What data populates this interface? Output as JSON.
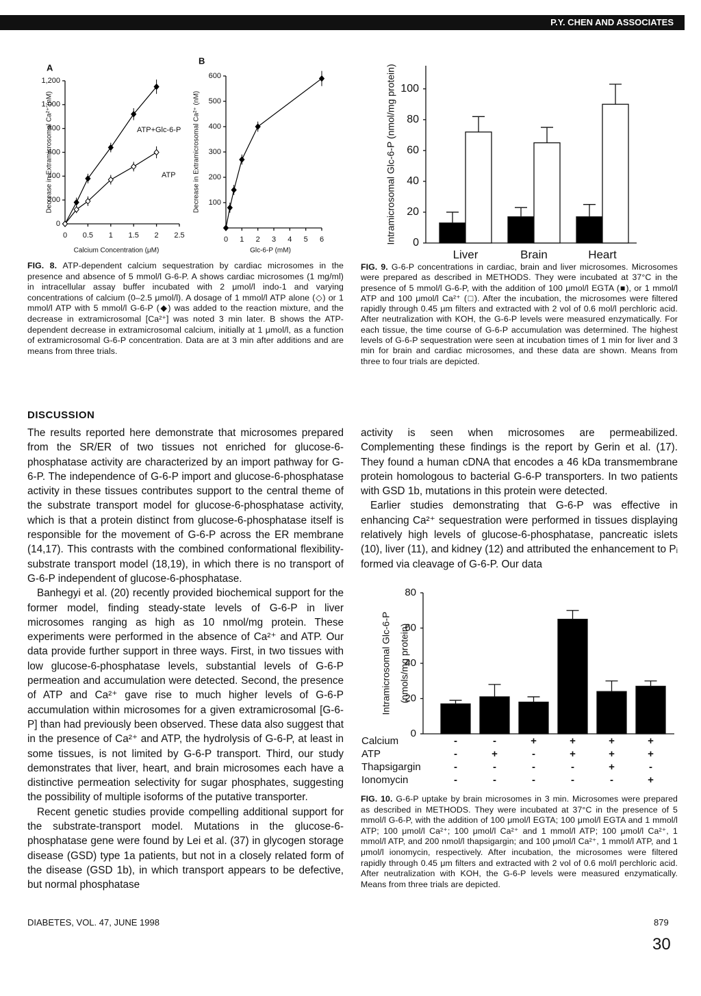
{
  "header": {
    "running_head": "P.Y. CHEN AND ASSOCIATES"
  },
  "chart_data": [
    {
      "type": "line",
      "panel": "A",
      "ylabel": "Decrease in Extramicrosomal Ca²⁺ (nM)",
      "xlabel": "Calcium Concentration (μM)",
      "x": [
        0,
        0.25,
        0.5,
        1,
        1.5,
        2
      ],
      "xlim": [
        0,
        2.5
      ],
      "xticks": [
        0,
        0.5,
        1,
        1.5,
        2,
        2.5
      ],
      "ylim": [
        0,
        1200
      ],
      "yticks": [
        0,
        200,
        400,
        600,
        800,
        {
          "value": 1000,
          "label": "1,000"
        },
        {
          "value": 1200,
          "label": "1,200"
        }
      ],
      "series": [
        {
          "name": "ATP+Glc-6-P",
          "color": "#000000",
          "marker_fill": "#000000",
          "values": [
            0,
            180,
            380,
            640,
            920,
            1150
          ],
          "errors": [
            0,
            40,
            40,
            40,
            50,
            60
          ]
        },
        {
          "name": "ATP",
          "color": "#000000",
          "marker_fill": "#ffffff",
          "values": [
            0,
            120,
            190,
            370,
            480,
            600
          ],
          "errors": [
            0,
            30,
            40,
            40,
            40,
            50
          ]
        }
      ]
    },
    {
      "type": "line",
      "panel": "B",
      "ylabel": "Decrease in Extramicrosomal Ca²⁺ (nM)",
      "xlabel": "Glc-6-P (mM)",
      "x": [
        0,
        0.25,
        0.5,
        1,
        2,
        6
      ],
      "xlim": [
        0,
        6
      ],
      "xticks": [
        0,
        1,
        2,
        3,
        4,
        5,
        6
      ],
      "ylim": [
        0,
        600
      ],
      "yticks": [
        100,
        200,
        300,
        400,
        500,
        600
      ],
      "series": [
        {
          "color": "#000000",
          "marker_fill": "#000000",
          "values": [
            0,
            80,
            150,
            270,
            400,
            590
          ],
          "errors": [
            0,
            20,
            20,
            20,
            20,
            30
          ]
        }
      ]
    },
    {
      "type": "bar",
      "ylabel": "Intramicrosomal Glc-6-P (nmol/mg protein)",
      "categories": [
        "Liver",
        "Brain",
        "Heart"
      ],
      "ylim": [
        0,
        115
      ],
      "yticks": [
        0,
        20,
        40,
        60,
        80,
        100
      ],
      "series": [
        {
          "color": "#000000",
          "values": [
            13,
            17,
            17
          ],
          "errors": [
            7,
            6,
            8
          ]
        },
        {
          "color": "#ffffff",
          "values": [
            72,
            65,
            90
          ],
          "errors": [
            10,
            10,
            13
          ]
        }
      ]
    },
    {
      "type": "bar",
      "ylabel": [
        "Intramicrosomal Glc-6-P",
        "(nmols/mg protein)"
      ],
      "ylim": [
        0,
        80
      ],
      "yticks": [
        0,
        20,
        40,
        60,
        80
      ],
      "series": [
        {
          "color": "#000000",
          "values": [
            17,
            21,
            18,
            65,
            24,
            27
          ],
          "errors": [
            2,
            7,
            3,
            5,
            6,
            3
          ]
        }
      ],
      "conditions": [
        {
          "label": "Calcium",
          "values": [
            "-",
            "-",
            "+",
            "+",
            "+",
            "+"
          ]
        },
        {
          "label": "ATP",
          "values": [
            "-",
            "+",
            "-",
            "+",
            "+",
            "+"
          ]
        },
        {
          "label": "Thapsigargin",
          "values": [
            "-",
            "-",
            "-",
            "-",
            "+",
            "-"
          ]
        },
        {
          "label": "Ionomycin",
          "values": [
            "-",
            "-",
            "-",
            "-",
            "-",
            "+"
          ]
        }
      ]
    }
  ],
  "captions": [
    {
      "label": "FIG. 8.",
      "text": "ATP-dependent calcium sequestration by cardiac microsomes in the presence and absence of 5 mmol/l G-6-P. A shows cardiac microsomes (1 mg/ml) in intracellular assay buffer incubated with 2 μmol/l indo-1 and varying concentrations of calcium (0–2.5 μmol/l). A dosage of 1 mmol/l ATP alone (◇) or 1 mmol/l ATP with 5 mmol/l G-6-P (◆) was added to the reaction mixture, and the decrease in extramicrosomal [Ca²⁺] was noted 3 min later. B shows the ATP-dependent decrease in extramicrosomal calcium, initially at 1 μmol/l, as a function of extramicrosomal G-6-P concentration. Data are at 3 min after additions and are means from three trials."
    },
    {
      "label": "FIG. 9.",
      "text": "G-6-P concentrations in cardiac, brain and liver microsomes. Microsomes were prepared as described in METHODS. They were incubated at 37°C in the presence of 5 mmol/l G-6-P, with the addition of 100 μmol/l EGTA (■), or 1 mmol/l ATP and 100 μmol/l Ca²⁺ (□). After the incubation, the microsomes were filtered rapidly through 0.45 μm filters and extracted with 2 vol of 0.6 mol/l perchloric acid. After neutralization with KOH, the G-6-P levels were measured enzymatically. For each tissue, the time course of G-6-P accumulation was determined. The highest levels of G-6-P sequestration were seen at incubation times of 1 min for liver and 3 min for brain and cardiac microsomes, and these data are shown. Means from three to four trials are depicted."
    },
    {
      "label": "FIG. 10.",
      "text": "G-6-P uptake by brain microsomes in 3 min. Microsomes were prepared as described in METHODS. They were incubated at 37°C in the presence of 5 mmol/l G-6-P, with the addition of 100 μmol/l EGTA; 100 μmol/l EGTA and 1 mmol/l ATP; 100 μmol/l Ca²⁺; 100 μmol/l Ca²⁺ and 1 mmol/l ATP; 100 μmol/l Ca²⁺, 1 mmol/l ATP, and 200 nmol/l thapsigargin; and 100 μmol/l Ca²⁺, 1 mmol/l ATP, and 1 μmol/l ionomycin, respectively. After incubation, the microsomes were filtered rapidly through 0.45 μm filters and extracted with 2 vol of 0.6 mol/l perchloric acid. After neutralization with KOH, the G-6-P levels were measured enzymatically. Means from three trials are depicted."
    }
  ],
  "discussion": {
    "heading": "DISCUSSION",
    "paragraphs": [
      "The results reported here demonstrate that microsomes prepared from the SR/ER of two tissues not enriched for glucose-6-phosphatase activity are characterized by an import pathway for G-6-P. The independence of G-6-P import and glucose-6-phosphatase activity in these tissues contributes support to the central theme of the substrate transport model for glucose-6-phosphatase activity, which is that a protein distinct from glucose-6-phosphatase itself is responsible for the movement of G-6-P across the ER membrane (14,17). This contrasts with the combined conformational flexibility-substrate transport model (18,19), in which there is no transport of G-6-P independent of glucose-6-phosphatase.",
      "Banhegyi et al. (20) recently provided biochemical support for the former model, finding steady-state levels of G-6-P in liver microsomes ranging as high as 10 nmol/mg protein. These experiments were performed in the absence of Ca²⁺ and ATP. Our data provide further support in three ways. First, in two tissues with low glucose-6-phosphatase levels, substantial levels of G-6-P permeation and accumulation were detected. Second, the presence of ATP and Ca²⁺ gave rise to much higher levels of G-6-P accumulation within microsomes for a given extramicrosomal [G-6-P] than had previously been observed. These data also suggest that in the presence of Ca²⁺ and ATP, the hydrolysis of G-6-P, at least in some tissues, is not limited by G-6-P transport. Third, our study demonstrates that liver, heart, and brain microsomes each have a distinctive permeation selectivity for sugar phosphates, suggesting the possibility of multiple isoforms of the putative transporter.",
      "Recent genetic studies provide compelling additional support for the substrate-transport model. Mutations in the glucose-6-phosphatase gene were found by Lei et al. (37) in glycogen storage disease (GSD) type 1a patients, but not in a closely related form of the disease (GSD 1b), in which transport appears to be defective, but normal phosphatase",
      "activity is seen when microsomes are permeabilized. Complementing these findings is the report by Gerin et al. (17). They found a human cDNA that encodes a 46 kDa transmembrane protein homologous to bacterial G-6-P transporters. In two patients with GSD 1b, mutations in this protein were detected.",
      "Earlier studies demonstrating that G-6-P was effective in enhancing Ca²⁺ sequestration were performed in tissues displaying relatively high levels of glucose-6-phosphatase, pancreatic islets (10), liver (11), and kidney (12) and attributed the enhancement to Pᵢ formed via cleavage of G-6-P. Our data"
    ]
  },
  "footer": {
    "journal": "DIABETES, VOL. 47, JUNE 1998",
    "page": "879",
    "stamp": "30"
  }
}
